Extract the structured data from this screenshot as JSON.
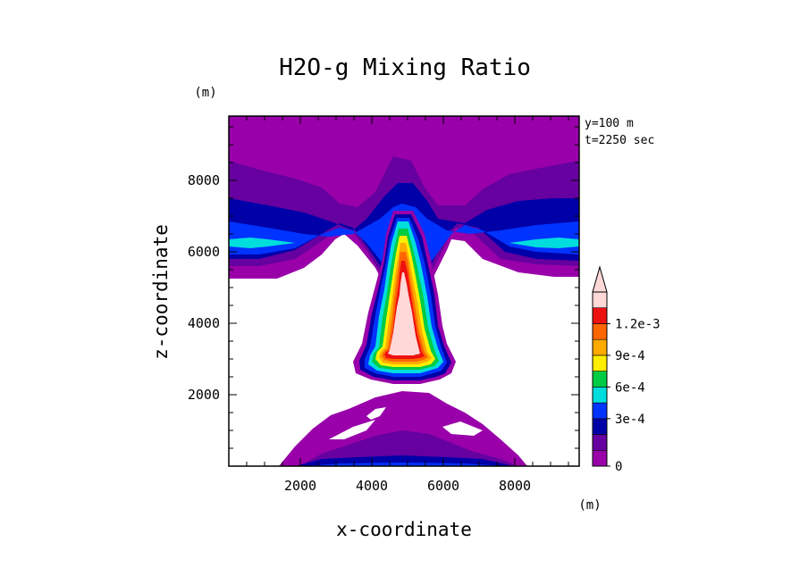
{
  "chart_data": {
    "type": "contour",
    "title": "H2O-g Mixing Ratio",
    "xlabel": "x-coordinate",
    "ylabel": "z-coordinate",
    "x_unit": "(m)",
    "y_unit": "(m)",
    "xlim": [
      0,
      9800
    ],
    "ylim": [
      0,
      9800
    ],
    "x_ticks": [
      2000,
      4000,
      6000,
      8000
    ],
    "y_ticks": [
      2000,
      4000,
      6000,
      8000
    ],
    "x_tick_labels": [
      "2000",
      "4000",
      "6000",
      "8000"
    ],
    "y_tick_labels": [
      "2000",
      "4000",
      "6000",
      "8000"
    ],
    "annotation_lines": [
      "y=100 m",
      "t=2250 sec"
    ],
    "colorbar": {
      "levels": [
        0,
        0.00015,
        0.0003,
        0.00045,
        0.0006,
        0.00075,
        0.0009,
        0.00105,
        0.0012
      ],
      "colors": [
        "#9900aa",
        "#6600a0",
        "#0000a8",
        "#0033ff",
        "#00dddd",
        "#00cc44",
        "#ffee00",
        "#ffaa00",
        "#ff6600",
        "#ee1111",
        "#ffd8d8"
      ],
      "labels": [
        {
          "value": 0,
          "text": "0"
        },
        {
          "value": 0.0003,
          "text": "3e-4"
        },
        {
          "value": 0.0006,
          "text": "6e-4"
        },
        {
          "value": 0.0009,
          "text": "9e-4"
        },
        {
          "value": 0.0012,
          "text": "1.2e-3"
        }
      ],
      "extend": "max"
    }
  }
}
